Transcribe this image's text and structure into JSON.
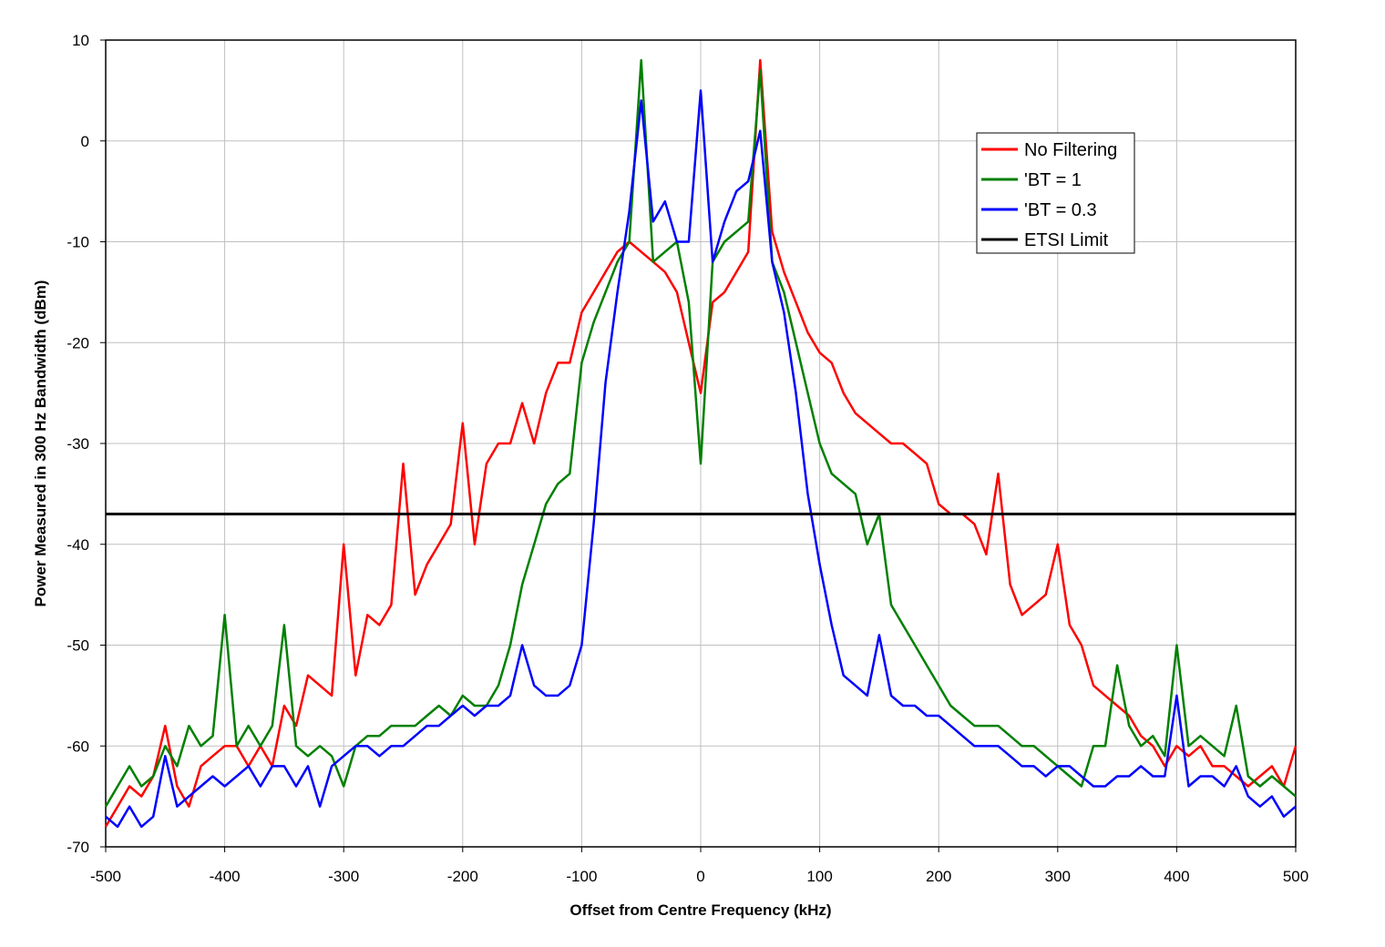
{
  "chart_data": {
    "type": "line",
    "title": "",
    "xlabel": "Offset from Centre Frequency (kHz)",
    "ylabel": "Power Measured in 300 Hz Bandwidth (dBm)",
    "xlim": [
      -500,
      500
    ],
    "ylim": [
      -70,
      10
    ],
    "xticks": [
      -500,
      -400,
      -300,
      -200,
      -100,
      0,
      100,
      200,
      300,
      400,
      500
    ],
    "yticks": [
      10,
      0,
      -10,
      -20,
      -30,
      -40,
      -50,
      -60,
      -70
    ],
    "xtick_labels": [
      "-500",
      "-400",
      "-300",
      "-200",
      "-100",
      "0",
      "100",
      "200",
      "300",
      "400",
      "500"
    ],
    "ytick_labels": [
      "10",
      "0",
      "-10",
      "-20",
      "-30",
      "-40",
      "-50",
      "-60",
      "-70"
    ],
    "grid": true,
    "legend_position": "top-right",
    "series": [
      {
        "name": "No Filtering",
        "color": "#ff0000",
        "x": [
          -500,
          -490,
          -480,
          -470,
          -460,
          -450,
          -440,
          -430,
          -420,
          -410,
          -400,
          -390,
          -380,
          -370,
          -360,
          -350,
          -340,
          -330,
          -320,
          -310,
          -300,
          -290,
          -280,
          -270,
          -260,
          -250,
          -240,
          -230,
          -220,
          -210,
          -200,
          -190,
          -180,
          -170,
          -160,
          -150,
          -140,
          -130,
          -120,
          -110,
          -100,
          -90,
          -80,
          -70,
          -60,
          -50,
          -40,
          -30,
          -20,
          -10,
          0,
          10,
          20,
          30,
          40,
          50,
          60,
          70,
          80,
          90,
          100,
          110,
          120,
          130,
          140,
          150,
          160,
          170,
          180,
          190,
          200,
          210,
          220,
          230,
          240,
          250,
          260,
          270,
          280,
          290,
          300,
          310,
          320,
          330,
          340,
          350,
          360,
          370,
          380,
          390,
          400,
          410,
          420,
          430,
          440,
          450,
          460,
          470,
          480,
          490,
          500
        ],
        "y": [
          -68,
          -66,
          -64,
          -65,
          -63,
          -58,
          -64,
          -66,
          -62,
          -61,
          -60,
          -60,
          -62,
          -60,
          -62,
          -56,
          -58,
          -53,
          -54,
          -55,
          -40,
          -53,
          -47,
          -48,
          -46,
          -32,
          -45,
          -42,
          -40,
          -38,
          -28,
          -40,
          -32,
          -30,
          -30,
          -26,
          -30,
          -25,
          -22,
          -22,
          -17,
          -15,
          -13,
          -11,
          -10,
          -11,
          -12,
          -13,
          -15,
          -20,
          -25,
          -16,
          -15,
          -13,
          -11,
          8,
          -9,
          -13,
          -16,
          -19,
          -21,
          -22,
          -25,
          -27,
          -28,
          -29,
          -30,
          -30,
          -31,
          -32,
          -36,
          -37,
          -37,
          -38,
          -41,
          -33,
          -44,
          -47,
          -46,
          -45,
          -40,
          -48,
          -50,
          -54,
          -55,
          -56,
          -57,
          -59,
          -60,
          -62,
          -60,
          -61,
          -60,
          -62,
          -62,
          -63,
          -64,
          -63,
          -62,
          -64,
          -60
        ]
      },
      {
        "name": "'BT = 1",
        "color": "#008000",
        "x": [
          -500,
          -490,
          -480,
          -470,
          -460,
          -450,
          -440,
          -430,
          -420,
          -410,
          -400,
          -390,
          -380,
          -370,
          -360,
          -350,
          -340,
          -330,
          -320,
          -310,
          -300,
          -290,
          -280,
          -270,
          -260,
          -250,
          -240,
          -230,
          -220,
          -210,
          -200,
          -190,
          -180,
          -170,
          -160,
          -150,
          -140,
          -130,
          -120,
          -110,
          -100,
          -90,
          -80,
          -70,
          -60,
          -50,
          -40,
          -30,
          -20,
          -10,
          0,
          10,
          20,
          30,
          40,
          50,
          60,
          70,
          80,
          90,
          100,
          110,
          120,
          130,
          140,
          150,
          160,
          170,
          180,
          190,
          200,
          210,
          220,
          230,
          240,
          250,
          260,
          270,
          280,
          290,
          300,
          310,
          320,
          330,
          340,
          350,
          360,
          370,
          380,
          390,
          400,
          410,
          420,
          430,
          440,
          450,
          460,
          470,
          480,
          490,
          500
        ],
        "y": [
          -66,
          -64,
          -62,
          -64,
          -63,
          -60,
          -62,
          -58,
          -60,
          -59,
          -47,
          -60,
          -58,
          -60,
          -58,
          -48,
          -60,
          -61,
          -60,
          -61,
          -64,
          -60,
          -59,
          -59,
          -58,
          -58,
          -58,
          -57,
          -56,
          -57,
          -55,
          -56,
          -56,
          -54,
          -50,
          -44,
          -40,
          -36,
          -34,
          -33,
          -22,
          -18,
          -15,
          -12,
          -10,
          8,
          -12,
          -11,
          -10,
          -16,
          -32,
          -12,
          -10,
          -9,
          -8,
          7,
          -12,
          -15,
          -20,
          -25,
          -30,
          -33,
          -34,
          -35,
          -40,
          -37,
          -46,
          -48,
          -50,
          -52,
          -54,
          -56,
          -57,
          -58,
          -58,
          -58,
          -59,
          -60,
          -60,
          -61,
          -62,
          -63,
          -64,
          -60,
          -60,
          -52,
          -58,
          -60,
          -59,
          -61,
          -50,
          -60,
          -59,
          -60,
          -61,
          -56,
          -63,
          -64,
          -63,
          -64,
          -65
        ]
      },
      {
        "name": "'BT = 0.3",
        "color": "#0000ff",
        "x": [
          -500,
          -490,
          -480,
          -470,
          -460,
          -450,
          -440,
          -430,
          -420,
          -410,
          -400,
          -390,
          -380,
          -370,
          -360,
          -350,
          -340,
          -330,
          -320,
          -310,
          -300,
          -290,
          -280,
          -270,
          -260,
          -250,
          -240,
          -230,
          -220,
          -210,
          -200,
          -190,
          -180,
          -170,
          -160,
          -150,
          -140,
          -130,
          -120,
          -110,
          -100,
          -90,
          -80,
          -70,
          -60,
          -50,
          -40,
          -30,
          -20,
          -10,
          0,
          10,
          20,
          30,
          40,
          50,
          60,
          70,
          80,
          90,
          100,
          110,
          120,
          130,
          140,
          150,
          160,
          170,
          180,
          190,
          200,
          210,
          220,
          230,
          240,
          250,
          260,
          270,
          280,
          290,
          300,
          310,
          320,
          330,
          340,
          350,
          360,
          370,
          380,
          390,
          400,
          410,
          420,
          430,
          440,
          450,
          460,
          470,
          480,
          490,
          500
        ],
        "y": [
          -67,
          -68,
          -66,
          -68,
          -67,
          -61,
          -66,
          -65,
          -64,
          -63,
          -64,
          -63,
          -62,
          -64,
          -62,
          -62,
          -64,
          -62,
          -66,
          -62,
          -61,
          -60,
          -60,
          -61,
          -60,
          -60,
          -59,
          -58,
          -58,
          -57,
          -56,
          -57,
          -56,
          -56,
          -55,
          -50,
          -54,
          -55,
          -55,
          -54,
          -50,
          -38,
          -24,
          -15,
          -7,
          4,
          -8,
          -6,
          -10,
          -10,
          5,
          -12,
          -8,
          -5,
          -4,
          1,
          -12,
          -17,
          -25,
          -35,
          -42,
          -48,
          -53,
          -54,
          -55,
          -49,
          -55,
          -56,
          -56,
          -57,
          -57,
          -58,
          -59,
          -60,
          -60,
          -60,
          -61,
          -62,
          -62,
          -63,
          -62,
          -62,
          -63,
          -64,
          -64,
          -63,
          -63,
          -62,
          -63,
          -63,
          -55,
          -64,
          -63,
          -63,
          -64,
          -62,
          -65,
          -66,
          -65,
          -67,
          -66
        ]
      },
      {
        "name": "ETSI Limit",
        "color": "#000000",
        "x": [
          -500,
          500
        ],
        "y": [
          -37,
          -37
        ]
      }
    ]
  }
}
